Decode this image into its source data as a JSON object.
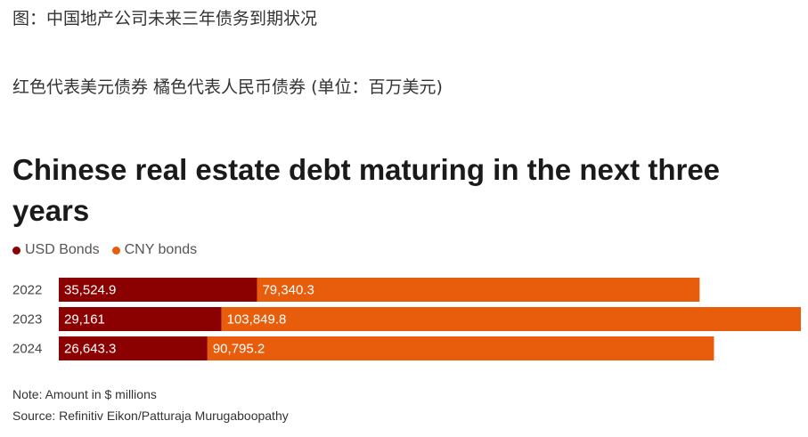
{
  "captions": {
    "line1": "图：中国地产公司未来三年债务到期状况",
    "line2": "红色代表美元债券 橘色代表人民币债券 (单位：百万美元)"
  },
  "notes": {
    "note": "Note: Amount in $ millions",
    "source": "Source: Refinitiv Eikon/Patturaja Murugaboopathy"
  },
  "chart_data": {
    "type": "bar",
    "orientation": "horizontal",
    "stacked": true,
    "title": "Chinese real estate debt maturing in the next three years",
    "categories": [
      "2022",
      "2023",
      "2024"
    ],
    "series": [
      {
        "name": "USD Bonds",
        "color": "#8b0000",
        "values": [
          35524.9,
          29161,
          26643.3
        ],
        "labels": [
          "35,524.9",
          "29,161",
          "26,643.3"
        ]
      },
      {
        "name": "CNY bonds",
        "color": "#e85d0c",
        "values": [
          79340.3,
          103849.8,
          90795.2
        ],
        "labels": [
          "79,340.3",
          "103,849.8",
          "90,795.2"
        ]
      }
    ],
    "legend": "top-left",
    "grid": false
  }
}
